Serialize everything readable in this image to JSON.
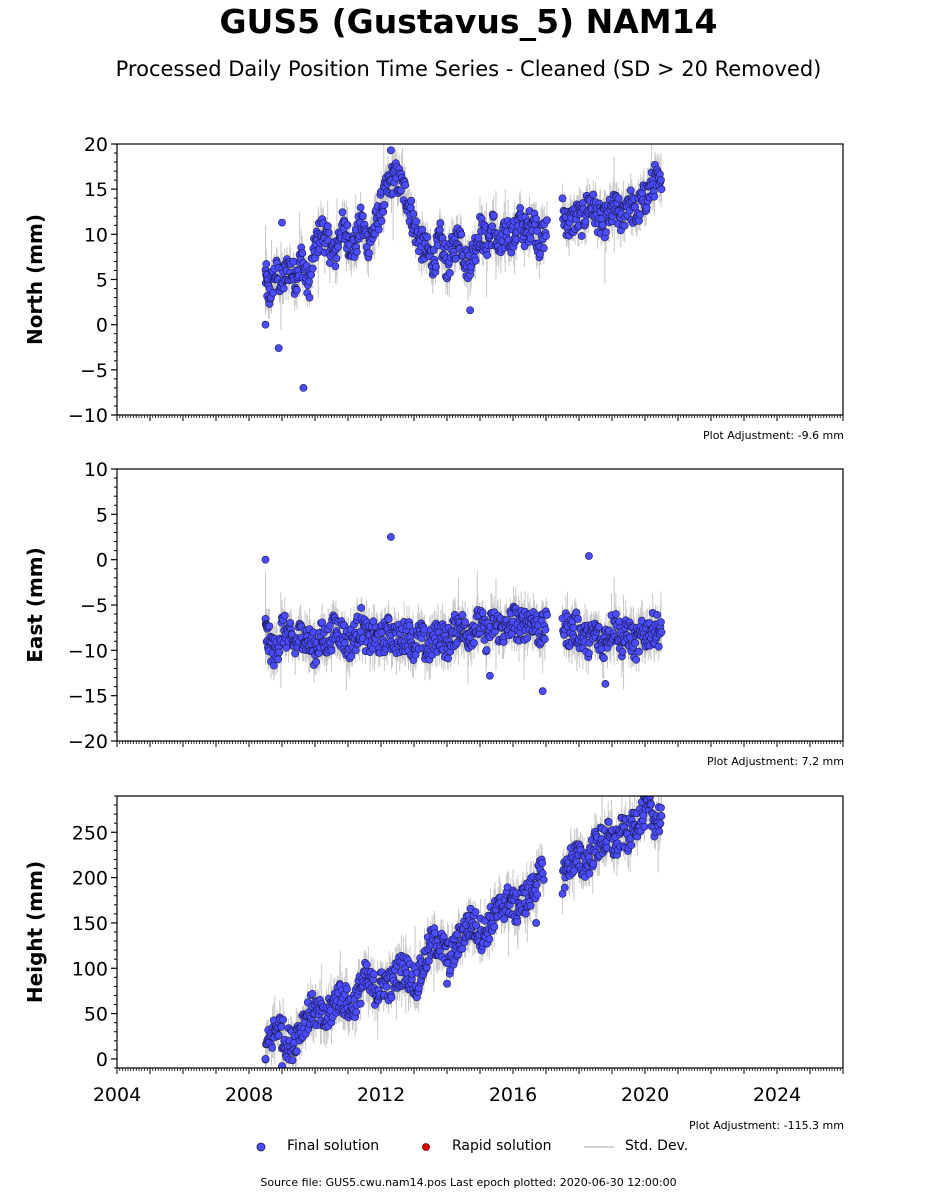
{
  "title": "GUS5 (Gustavus_5) NAM14",
  "subtitle": "Processed Daily Position Time Series - Cleaned (SD > 20 Removed)",
  "footer": "Source file: GUS5.cwu.nam14.pos  Last epoch plotted: 2020-06-30 12:00:00",
  "colors": {
    "final": "#4b4bff",
    "rapid": "#e00000",
    "stddev": "#c8c8c8",
    "edge": "#1a1a4a"
  },
  "legend": {
    "final": "Final solution",
    "rapid": "Rapid solution",
    "stddev": "Std. Dev."
  },
  "chart_data": [
    {
      "type": "scatter",
      "ylabel": "North (mm)",
      "adjustment": "Plot Adjustment: -9.6 mm",
      "xlim": [
        2004,
        2026
      ],
      "ylim": [
        -10,
        20
      ],
      "yticks": [
        -10,
        -5,
        0,
        5,
        10,
        15,
        20
      ],
      "xticks": [
        2004,
        2008,
        2012,
        2016,
        2020,
        2024
      ],
      "show_xtick_labels": false,
      "series": [
        {
          "name": "Final solution",
          "x": [
            2008.5,
            2008.6,
            2008.8,
            2009.0,
            2009.2,
            2009.4,
            2009.6,
            2009.8,
            2010.0,
            2010.2,
            2010.4,
            2010.6,
            2010.8,
            2011.0,
            2011.2,
            2011.4,
            2011.6,
            2011.8,
            2012.0,
            2012.2,
            2012.4,
            2012.6,
            2012.8,
            2013.0,
            2013.2,
            2013.4,
            2013.6,
            2013.8,
            2014.0,
            2014.2,
            2014.4,
            2014.6,
            2014.8,
            2015.0,
            2015.2,
            2015.4,
            2015.6,
            2015.8,
            2016.0,
            2016.2,
            2016.4,
            2016.6,
            2016.8,
            2017.0,
            2017.5,
            2017.7,
            2017.9,
            2018.1,
            2018.3,
            2018.5,
            2018.7,
            2018.9,
            2019.1,
            2019.3,
            2019.5,
            2019.7,
            2019.9,
            2020.1,
            2020.3,
            2020.5
          ],
          "y": [
            5.5,
            3.2,
            5.8,
            4.5,
            6.5,
            5.0,
            7.5,
            4.0,
            8.5,
            10.5,
            9.0,
            7.5,
            11.0,
            9.5,
            8.5,
            11.5,
            9.0,
            10.5,
            13.0,
            15.0,
            16.5,
            15.5,
            14.0,
            11.0,
            9.0,
            8.0,
            7.0,
            9.5,
            6.5,
            8.5,
            10.0,
            6.5,
            8.0,
            10.5,
            9.0,
            11.0,
            8.0,
            10.5,
            9.5,
            11.5,
            10.0,
            12.0,
            9.0,
            10.5,
            12.5,
            11.0,
            12.0,
            11.5,
            13.5,
            12.5,
            11.0,
            12.0,
            13.0,
            11.5,
            14.0,
            12.0,
            13.5,
            14.5,
            16.0,
            15.0
          ]
        }
      ],
      "outliers": {
        "x": [
          2008.5,
          2008.9,
          2009.0,
          2009.65,
          2012.3,
          2014.7
        ],
        "y": [
          0,
          -2.6,
          11.3,
          -7,
          19.3,
          1.6
        ]
      }
    },
    {
      "type": "scatter",
      "ylabel": "East (mm)",
      "adjustment": "Plot Adjustment: 7.2 mm",
      "xlim": [
        2004,
        2026
      ],
      "ylim": [
        -20,
        10
      ],
      "yticks": [
        -20,
        -15,
        -10,
        -5,
        0,
        5,
        10
      ],
      "xticks": [
        2004,
        2008,
        2012,
        2016,
        2020,
        2024
      ],
      "show_xtick_labels": false,
      "series": [
        {
          "name": "Final solution",
          "x": [
            2008.5,
            2008.6,
            2008.8,
            2009.0,
            2009.2,
            2009.4,
            2009.6,
            2009.8,
            2010.0,
            2010.2,
            2010.4,
            2010.6,
            2010.8,
            2011.0,
            2011.2,
            2011.4,
            2011.6,
            2011.8,
            2012.0,
            2012.2,
            2012.4,
            2012.6,
            2012.8,
            2013.0,
            2013.2,
            2013.4,
            2013.6,
            2013.8,
            2014.0,
            2014.2,
            2014.4,
            2014.6,
            2014.8,
            2015.0,
            2015.2,
            2015.4,
            2015.6,
            2015.8,
            2016.0,
            2016.2,
            2016.4,
            2016.6,
            2016.8,
            2017.0,
            2017.5,
            2017.7,
            2017.9,
            2018.1,
            2018.3,
            2018.5,
            2018.7,
            2018.9,
            2019.1,
            2019.3,
            2019.5,
            2019.7,
            2019.9,
            2020.1,
            2020.3,
            2020.5
          ],
          "y": [
            -8.0,
            -9.0,
            -10.5,
            -7.5,
            -8.5,
            -9.5,
            -8.0,
            -9.0,
            -10.0,
            -8.5,
            -9.0,
            -7.5,
            -8.0,
            -9.5,
            -8.5,
            -7.0,
            -9.0,
            -8.5,
            -9.0,
            -8.0,
            -8.5,
            -9.0,
            -8.0,
            -9.5,
            -8.5,
            -10.0,
            -9.0,
            -8.0,
            -9.5,
            -8.0,
            -7.0,
            -8.5,
            -7.5,
            -7.0,
            -8.5,
            -7.0,
            -7.5,
            -8.0,
            -6.5,
            -7.5,
            -7.0,
            -6.5,
            -8.0,
            -7.5,
            -7.0,
            -8.0,
            -7.5,
            -8.5,
            -9.0,
            -8.0,
            -9.5,
            -8.0,
            -7.0,
            -9.0,
            -8.0,
            -9.5,
            -8.5,
            -8.0,
            -7.5,
            -8.0
          ]
        }
      ],
      "outliers": {
        "x": [
          2008.5,
          2012.3,
          2018.3,
          2016.9,
          2015.3,
          2018.8
        ],
        "y": [
          0,
          2.5,
          0.4,
          -14.5,
          -12.8,
          -13.7
        ]
      }
    },
    {
      "type": "scatter",
      "ylabel": "Height (mm)",
      "adjustment": "Plot Adjustment: -115.3 mm",
      "xlim": [
        2004,
        2026
      ],
      "ylim": [
        -10,
        290
      ],
      "yticks": [
        0,
        50,
        100,
        150,
        200,
        250
      ],
      "xticks": [
        2004,
        2008,
        2012,
        2016,
        2020,
        2024
      ],
      "show_xtick_labels": true,
      "series": [
        {
          "name": "Final solution",
          "x": [
            2008.5,
            2008.7,
            2008.9,
            2009.1,
            2009.3,
            2009.5,
            2009.7,
            2009.9,
            2010.1,
            2010.3,
            2010.5,
            2010.7,
            2010.9,
            2011.1,
            2011.3,
            2011.5,
            2011.7,
            2011.9,
            2012.1,
            2012.3,
            2012.5,
            2012.7,
            2012.9,
            2013.1,
            2013.3,
            2013.5,
            2013.7,
            2013.9,
            2014.1,
            2014.3,
            2014.5,
            2014.7,
            2014.9,
            2015.1,
            2015.3,
            2015.5,
            2015.7,
            2015.9,
            2016.1,
            2016.3,
            2016.5,
            2016.7,
            2016.9,
            2017.5,
            2017.7,
            2017.9,
            2018.1,
            2018.3,
            2018.5,
            2018.7,
            2018.9,
            2019.1,
            2019.3,
            2019.5,
            2019.7,
            2019.9,
            2020.1,
            2020.3,
            2020.5
          ],
          "y": [
            10,
            25,
            38,
            20,
            15,
            30,
            45,
            55,
            50,
            40,
            55,
            70,
            65,
            55,
            70,
            90,
            80,
            75,
            85,
            80,
            95,
            100,
            90,
            85,
            105,
            125,
            130,
            120,
            110,
            125,
            140,
            150,
            145,
            135,
            150,
            160,
            170,
            175,
            165,
            175,
            180,
            195,
            205,
            200,
            215,
            225,
            215,
            220,
            235,
            240,
            245,
            235,
            250,
            245,
            260,
            270,
            275,
            262,
            268
          ]
        }
      ],
      "outliers": {
        "x": [
          2008.5,
          2009.0,
          2014.0,
          2016.7
        ],
        "y": [
          0,
          -8,
          83,
          150
        ]
      }
    }
  ]
}
